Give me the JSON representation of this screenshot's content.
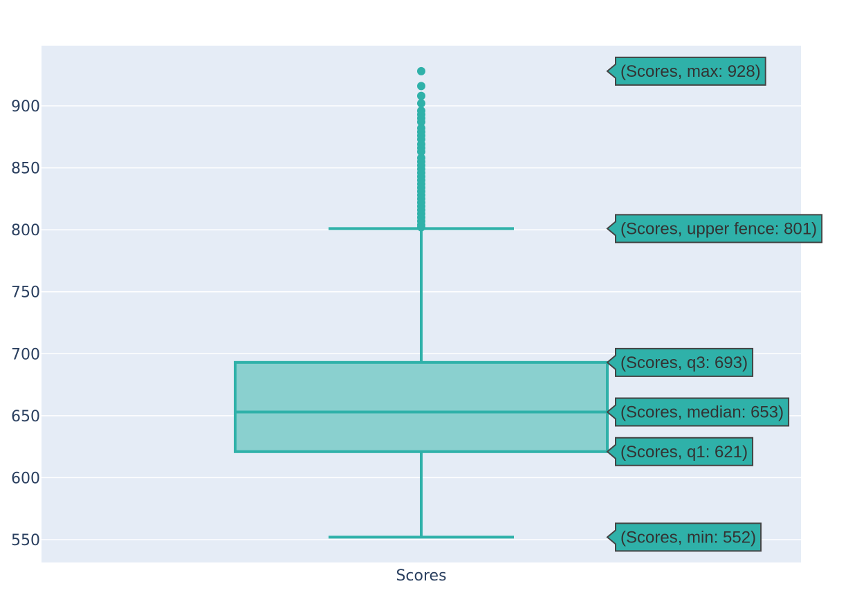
{
  "chart_data": {
    "type": "box",
    "categories": [
      "Scores"
    ],
    "ylim": [
      530,
      950
    ],
    "yticks": [
      550,
      600,
      650,
      700,
      750,
      800,
      850,
      900
    ],
    "grid": true,
    "colors": {
      "plot_bg": "#e5ecf6",
      "grid": "#ffffff",
      "box_line": "#2fb1a9",
      "box_fill": "#8ad0cf",
      "tip_bg": "#2fb1a9",
      "tip_border": "#444444",
      "text": "#2a3f5f"
    },
    "series": [
      {
        "category": "Scores",
        "min": 552,
        "q1": 621,
        "median": 653,
        "q3": 693,
        "upper_fence": 801,
        "max": 928,
        "outliers": [
          928,
          916,
          908,
          902,
          896,
          893,
          890,
          887,
          882,
          879,
          876,
          873,
          869,
          866,
          863,
          858,
          855,
          852,
          849,
          846,
          843,
          840,
          837,
          834,
          831,
          828,
          825,
          822,
          819,
          816,
          813,
          810,
          807,
          804,
          802
        ]
      }
    ],
    "tooltips": [
      {
        "text": "(Scores, max: 928)",
        "value": 928
      },
      {
        "text": "(Scores, upper fence: 801)",
        "value": 801
      },
      {
        "text": "(Scores, q3: 693)",
        "value": 693
      },
      {
        "text": "(Scores, median: 653)",
        "value": 653
      },
      {
        "text": "(Scores, q1: 621)",
        "value": 621
      },
      {
        "text": "(Scores, min: 552)",
        "value": 552
      }
    ]
  }
}
